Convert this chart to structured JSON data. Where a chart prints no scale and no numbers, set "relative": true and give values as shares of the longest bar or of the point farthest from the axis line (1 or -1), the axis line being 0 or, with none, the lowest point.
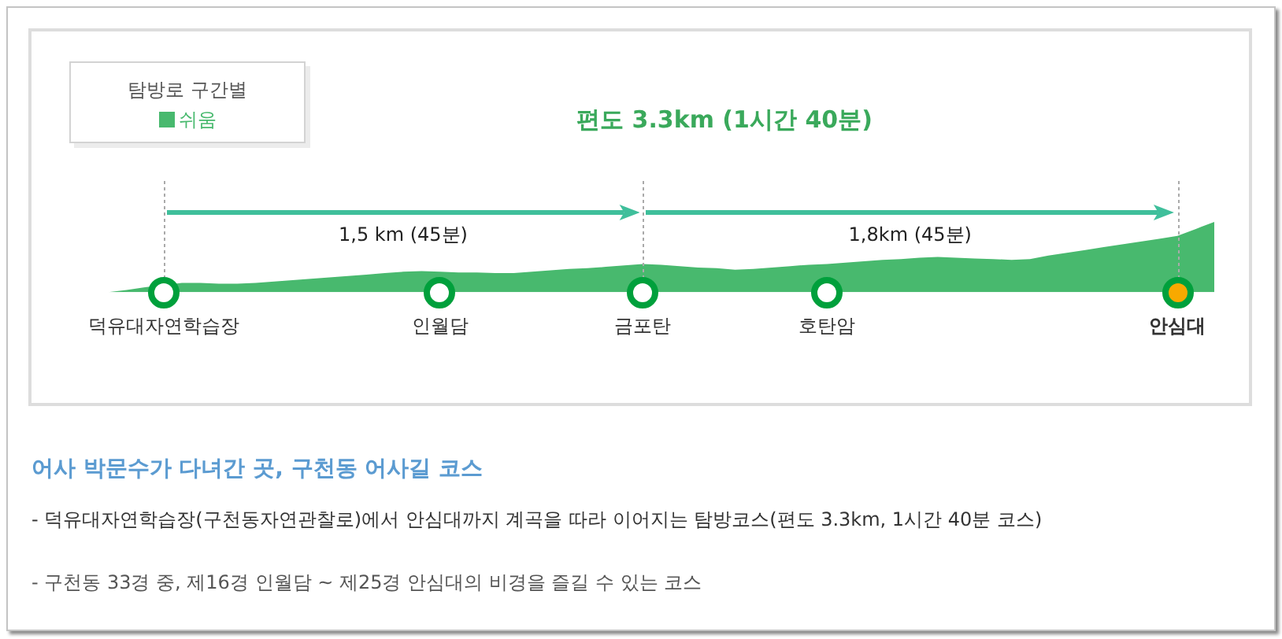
{
  "chart_data": {
    "type": "area",
    "title": "편도 3.3km (1시간 40분)",
    "legend_title": "탐방로 구간별",
    "legend": "top left",
    "relative": true,
    "marker": "none",
    "categories": [
      null,
      null,
      null,
      null,
      "덕유대자연학습장",
      null,
      null,
      null,
      null,
      null,
      null,
      null,
      null,
      null,
      null,
      null,
      null,
      null,
      null,
      "인월담",
      null,
      null,
      null,
      null,
      null,
      null,
      null,
      null,
      null,
      null,
      "금포탄",
      null,
      null,
      null,
      null,
      null,
      null,
      null,
      null,
      null,
      "호탄암",
      null,
      null,
      null,
      null,
      null,
      null,
      null,
      null,
      null,
      null,
      null,
      null,
      null,
      null,
      null,
      null,
      null,
      null,
      "안심대",
      null,
      null
    ],
    "series": [
      {
        "name": "쉬움",
        "color": "#48b96e",
        "values": [
          0,
          0,
          0.03,
          0.07,
          null,
          0.13,
          0.13,
          0.12,
          0.12,
          0.13,
          0.15,
          0.17,
          0.19,
          0.21,
          0.23,
          0.25,
          0.27,
          0.29,
          0.3,
          0.29,
          0.28,
          0.28,
          0.27,
          0.27,
          0.29,
          0.31,
          0.33,
          0.34,
          0.36,
          0.38,
          0.4,
          0.39,
          0.37,
          0.35,
          0.34,
          0.32,
          0.33,
          0.35,
          0.37,
          0.39,
          0.4,
          0.42,
          0.44,
          0.46,
          0.47,
          0.49,
          0.5,
          0.49,
          0.48,
          0.47,
          0.46,
          0.47,
          0.52,
          0.56,
          0.6,
          0.64,
          0.68,
          0.72,
          0.76,
          0.8,
          0.9,
          1
        ]
      }
    ],
    "ref_lines": [
      {
        "axis": "x",
        "value": "덕유대자연학습장",
        "color": "#aaaaaa",
        "line_style": "dotted"
      },
      {
        "axis": "x",
        "value": "금포탄",
        "color": "#aaaaaa",
        "line_style": "dotted"
      },
      {
        "axis": "x",
        "value": "안심대",
        "color": "#aaaaaa",
        "line_style": "dotted"
      }
    ],
    "annotations": [
      "1,5 km (45분)",
      "1,8km (45분)",
      "어사 박문수가 다녀간 곳, 구천동 어사길 코스",
      "- 덕유대자연학습장(구천동자연관찰로)에서 안심대까지 계곡을 따라 이어지는 탐방코스(편도 3.3km, 1시간 40분 코스)",
      "- 구천동 33경 중, 제16경 인월담 ~ 제25경 안심대의 비경을 즐길 수 있는 코스"
    ]
  }
}
